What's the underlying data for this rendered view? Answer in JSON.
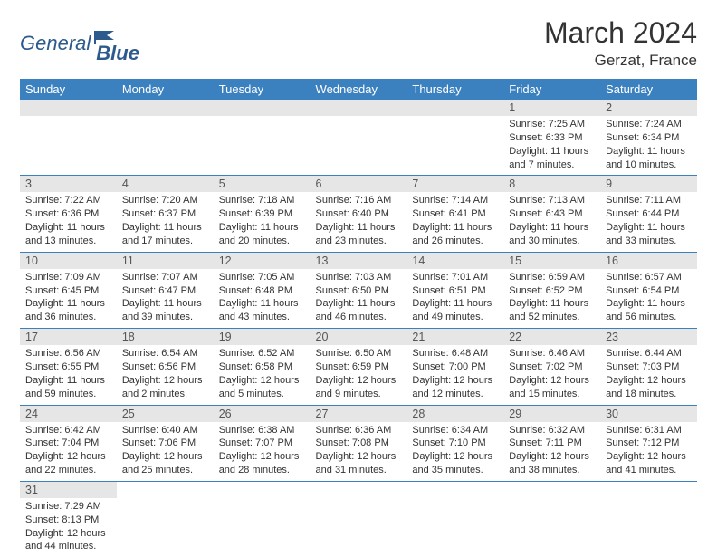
{
  "logo": {
    "general": "General",
    "blue": "Blue"
  },
  "title": "March 2024",
  "subtitle": "Gerzat, France",
  "colors": {
    "header_bg": "#3c81bf",
    "header_text": "#ffffff",
    "daynum_bg": "#e6e6e6",
    "border": "#3c81bf",
    "logo_color": "#2d5a8c",
    "page_bg": "#ffffff",
    "text": "#333333"
  },
  "dayHeaders": [
    "Sunday",
    "Monday",
    "Tuesday",
    "Wednesday",
    "Thursday",
    "Friday",
    "Saturday"
  ],
  "weeks": [
    [
      null,
      null,
      null,
      null,
      null,
      {
        "n": "1",
        "sr": "Sunrise: 7:25 AM",
        "ss": "Sunset: 6:33 PM",
        "d1": "Daylight: 11 hours",
        "d2": "and 7 minutes."
      },
      {
        "n": "2",
        "sr": "Sunrise: 7:24 AM",
        "ss": "Sunset: 6:34 PM",
        "d1": "Daylight: 11 hours",
        "d2": "and 10 minutes."
      }
    ],
    [
      {
        "n": "3",
        "sr": "Sunrise: 7:22 AM",
        "ss": "Sunset: 6:36 PM",
        "d1": "Daylight: 11 hours",
        "d2": "and 13 minutes."
      },
      {
        "n": "4",
        "sr": "Sunrise: 7:20 AM",
        "ss": "Sunset: 6:37 PM",
        "d1": "Daylight: 11 hours",
        "d2": "and 17 minutes."
      },
      {
        "n": "5",
        "sr": "Sunrise: 7:18 AM",
        "ss": "Sunset: 6:39 PM",
        "d1": "Daylight: 11 hours",
        "d2": "and 20 minutes."
      },
      {
        "n": "6",
        "sr": "Sunrise: 7:16 AM",
        "ss": "Sunset: 6:40 PM",
        "d1": "Daylight: 11 hours",
        "d2": "and 23 minutes."
      },
      {
        "n": "7",
        "sr": "Sunrise: 7:14 AM",
        "ss": "Sunset: 6:41 PM",
        "d1": "Daylight: 11 hours",
        "d2": "and 26 minutes."
      },
      {
        "n": "8",
        "sr": "Sunrise: 7:13 AM",
        "ss": "Sunset: 6:43 PM",
        "d1": "Daylight: 11 hours",
        "d2": "and 30 minutes."
      },
      {
        "n": "9",
        "sr": "Sunrise: 7:11 AM",
        "ss": "Sunset: 6:44 PM",
        "d1": "Daylight: 11 hours",
        "d2": "and 33 minutes."
      }
    ],
    [
      {
        "n": "10",
        "sr": "Sunrise: 7:09 AM",
        "ss": "Sunset: 6:45 PM",
        "d1": "Daylight: 11 hours",
        "d2": "and 36 minutes."
      },
      {
        "n": "11",
        "sr": "Sunrise: 7:07 AM",
        "ss": "Sunset: 6:47 PM",
        "d1": "Daylight: 11 hours",
        "d2": "and 39 minutes."
      },
      {
        "n": "12",
        "sr": "Sunrise: 7:05 AM",
        "ss": "Sunset: 6:48 PM",
        "d1": "Daylight: 11 hours",
        "d2": "and 43 minutes."
      },
      {
        "n": "13",
        "sr": "Sunrise: 7:03 AM",
        "ss": "Sunset: 6:50 PM",
        "d1": "Daylight: 11 hours",
        "d2": "and 46 minutes."
      },
      {
        "n": "14",
        "sr": "Sunrise: 7:01 AM",
        "ss": "Sunset: 6:51 PM",
        "d1": "Daylight: 11 hours",
        "d2": "and 49 minutes."
      },
      {
        "n": "15",
        "sr": "Sunrise: 6:59 AM",
        "ss": "Sunset: 6:52 PM",
        "d1": "Daylight: 11 hours",
        "d2": "and 52 minutes."
      },
      {
        "n": "16",
        "sr": "Sunrise: 6:57 AM",
        "ss": "Sunset: 6:54 PM",
        "d1": "Daylight: 11 hours",
        "d2": "and 56 minutes."
      }
    ],
    [
      {
        "n": "17",
        "sr": "Sunrise: 6:56 AM",
        "ss": "Sunset: 6:55 PM",
        "d1": "Daylight: 11 hours",
        "d2": "and 59 minutes."
      },
      {
        "n": "18",
        "sr": "Sunrise: 6:54 AM",
        "ss": "Sunset: 6:56 PM",
        "d1": "Daylight: 12 hours",
        "d2": "and 2 minutes."
      },
      {
        "n": "19",
        "sr": "Sunrise: 6:52 AM",
        "ss": "Sunset: 6:58 PM",
        "d1": "Daylight: 12 hours",
        "d2": "and 5 minutes."
      },
      {
        "n": "20",
        "sr": "Sunrise: 6:50 AM",
        "ss": "Sunset: 6:59 PM",
        "d1": "Daylight: 12 hours",
        "d2": "and 9 minutes."
      },
      {
        "n": "21",
        "sr": "Sunrise: 6:48 AM",
        "ss": "Sunset: 7:00 PM",
        "d1": "Daylight: 12 hours",
        "d2": "and 12 minutes."
      },
      {
        "n": "22",
        "sr": "Sunrise: 6:46 AM",
        "ss": "Sunset: 7:02 PM",
        "d1": "Daylight: 12 hours",
        "d2": "and 15 minutes."
      },
      {
        "n": "23",
        "sr": "Sunrise: 6:44 AM",
        "ss": "Sunset: 7:03 PM",
        "d1": "Daylight: 12 hours",
        "d2": "and 18 minutes."
      }
    ],
    [
      {
        "n": "24",
        "sr": "Sunrise: 6:42 AM",
        "ss": "Sunset: 7:04 PM",
        "d1": "Daylight: 12 hours",
        "d2": "and 22 minutes."
      },
      {
        "n": "25",
        "sr": "Sunrise: 6:40 AM",
        "ss": "Sunset: 7:06 PM",
        "d1": "Daylight: 12 hours",
        "d2": "and 25 minutes."
      },
      {
        "n": "26",
        "sr": "Sunrise: 6:38 AM",
        "ss": "Sunset: 7:07 PM",
        "d1": "Daylight: 12 hours",
        "d2": "and 28 minutes."
      },
      {
        "n": "27",
        "sr": "Sunrise: 6:36 AM",
        "ss": "Sunset: 7:08 PM",
        "d1": "Daylight: 12 hours",
        "d2": "and 31 minutes."
      },
      {
        "n": "28",
        "sr": "Sunrise: 6:34 AM",
        "ss": "Sunset: 7:10 PM",
        "d1": "Daylight: 12 hours",
        "d2": "and 35 minutes."
      },
      {
        "n": "29",
        "sr": "Sunrise: 6:32 AM",
        "ss": "Sunset: 7:11 PM",
        "d1": "Daylight: 12 hours",
        "d2": "and 38 minutes."
      },
      {
        "n": "30",
        "sr": "Sunrise: 6:31 AM",
        "ss": "Sunset: 7:12 PM",
        "d1": "Daylight: 12 hours",
        "d2": "and 41 minutes."
      }
    ],
    [
      {
        "n": "31",
        "sr": "Sunrise: 7:29 AM",
        "ss": "Sunset: 8:13 PM",
        "d1": "Daylight: 12 hours",
        "d2": "and 44 minutes."
      },
      null,
      null,
      null,
      null,
      null,
      null
    ]
  ]
}
